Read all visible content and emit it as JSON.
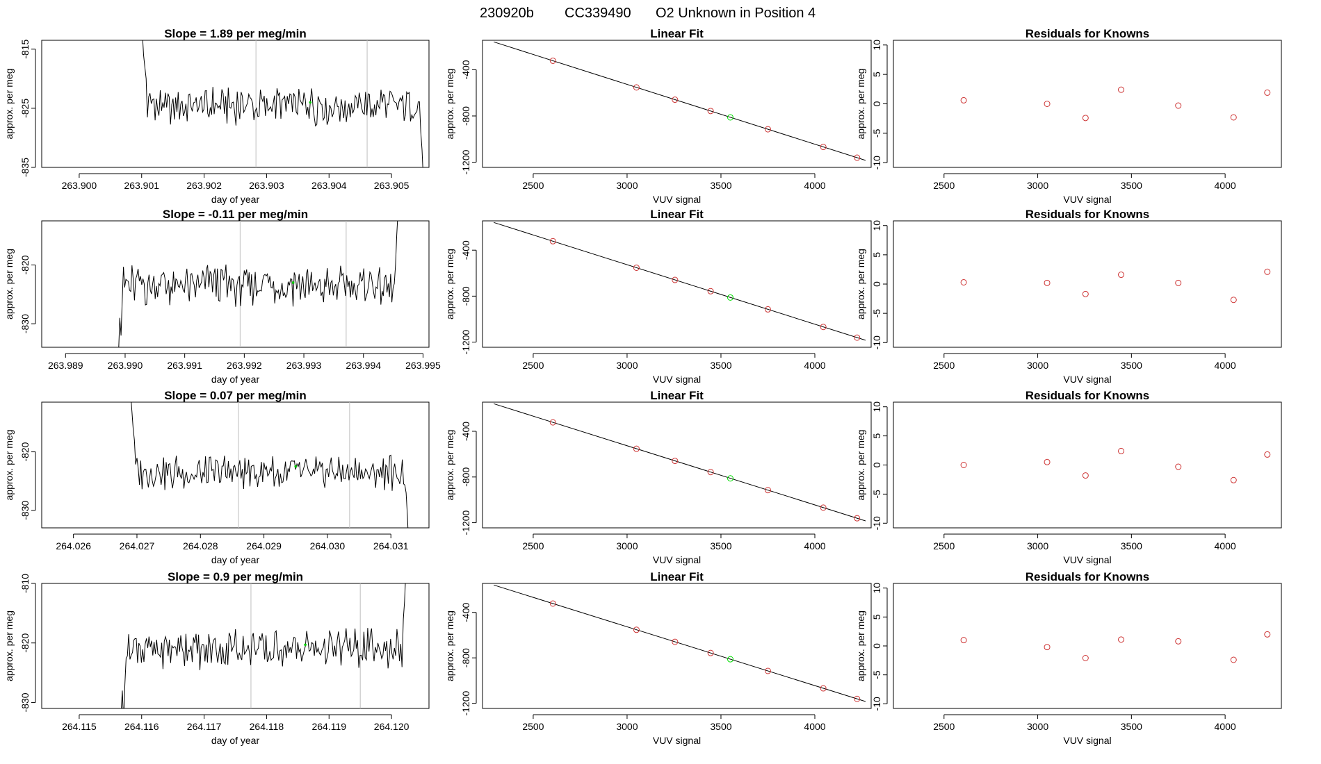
{
  "header": {
    "run": "230920b",
    "cylinder": "CC339490",
    "description": "O2 Unknown in Position  4"
  },
  "chart_data": [
    {
      "type": "line",
      "panel": "timeseries",
      "row": 1,
      "title": "Slope =  1.89  per meg/min",
      "xlabel": "day of year",
      "ylabel": "approx. per meg",
      "xlim": [
        263.8994,
        263.9056
      ],
      "ylim": [
        -835,
        -813.5
      ],
      "xticks": [
        263.9,
        263.901,
        263.902,
        263.903,
        263.904,
        263.905
      ],
      "xtick_labels": [
        "263.900",
        "263.901",
        "263.902",
        "263.903",
        "263.904",
        "263.905"
      ],
      "yticks": [
        -835,
        -825,
        -815
      ],
      "ytick_labels": [
        "-835",
        "-825",
        "-815"
      ],
      "vlines": [
        263.90283,
        263.90461
      ],
      "marker": {
        "x": 263.9037,
        "y": -824.0
      },
      "series": {
        "start": 263.90101,
        "end": 263.90553,
        "n": 220,
        "mean": -824.5,
        "amp": 3.0,
        "head": [
          -812,
          -816,
          -818,
          -820
        ],
        "tail": [
          -829,
          -832,
          -837
        ]
      }
    },
    {
      "type": "line",
      "panel": "timeseries",
      "row": 2,
      "title": "Slope =  -0.11  per meg/min",
      "xlabel": "day of year",
      "ylabel": "approx. per meg",
      "xlim": [
        263.9886,
        263.9951
      ],
      "ylim": [
        -834,
        -812.5
      ],
      "xticks": [
        263.989,
        263.99,
        263.991,
        263.992,
        263.993,
        263.994,
        263.995
      ],
      "xtick_labels": [
        "263.989",
        "263.990",
        "263.991",
        "263.992",
        "263.993",
        "263.994",
        "263.995"
      ],
      "yticks": [
        -830,
        -820
      ],
      "ytick_labels": [
        "-830",
        "-820"
      ],
      "vlines": [
        263.99193,
        263.99371
      ],
      "marker": {
        "x": 263.99282,
        "y": -823.0
      },
      "series": {
        "start": 263.98989,
        "end": 263.9946,
        "n": 230,
        "mean": -823.5,
        "amp": 3.3,
        "head": [
          -835,
          -829,
          -832,
          -826
        ],
        "tail": [
          -820,
          -815,
          -811
        ]
      }
    },
    {
      "type": "line",
      "panel": "timeseries",
      "row": 3,
      "title": "Slope =  0.07  per meg/min",
      "xlabel": "day of year",
      "ylabel": "approx. per meg",
      "xlim": [
        264.0255,
        264.0316
      ],
      "ylim": [
        -833,
        -811.5
      ],
      "xticks": [
        264.026,
        264.027,
        264.028,
        264.029,
        264.03,
        264.031
      ],
      "xtick_labels": [
        "264.026",
        "264.027",
        "264.028",
        "264.029",
        "264.030",
        "264.031"
      ],
      "yticks": [
        -830,
        -820
      ],
      "ytick_labels": [
        "-830",
        "-820"
      ],
      "vlines": [
        264.0286,
        264.03035
      ],
      "marker": {
        "x": 264.0295,
        "y": -822.5
      },
      "series": {
        "start": 264.0269,
        "end": 264.0313,
        "n": 220,
        "mean": -823.5,
        "amp": 2.9,
        "head": [
          -810,
          -813,
          -816,
          -818
        ],
        "tail": [
          -827,
          -831,
          -836
        ]
      }
    },
    {
      "type": "line",
      "panel": "timeseries",
      "row": 4,
      "title": "Slope =  0.9  per meg/min",
      "xlabel": "day of year",
      "ylabel": "approx. per meg",
      "xlim": [
        264.1144,
        264.1206
      ],
      "ylim": [
        -831,
        -810
      ],
      "xticks": [
        264.115,
        264.116,
        264.117,
        264.118,
        264.119,
        264.12
      ],
      "xtick_labels": [
        "264.115",
        "264.116",
        "264.117",
        "264.118",
        "264.119",
        "264.120"
      ],
      "yticks": [
        -830,
        -820,
        -810
      ],
      "ytick_labels": [
        "-830",
        "-820",
        "-810"
      ],
      "vlines": [
        264.11775,
        264.1195
      ],
      "marker": {
        "x": 264.11862,
        "y": -820.3
      },
      "series": {
        "start": 264.11567,
        "end": 264.12025,
        "n": 225,
        "mean": -821.0,
        "amp": 3.2,
        "head": [
          -832,
          -828,
          -833,
          -827
        ],
        "tail": [
          -816,
          -813,
          -808
        ]
      }
    },
    {
      "type": "scatter",
      "panel": "fit",
      "row": 1,
      "title": "Linear Fit",
      "xlabel": "VUV signal",
      "ylabel": "approx. per meg",
      "xlim": [
        2230,
        4300
      ],
      "ylim": [
        -1245,
        -145
      ],
      "xticks": [
        2500,
        3000,
        3500,
        4000
      ],
      "xtick_labels": [
        "2500",
        "3000",
        "3500",
        "4000"
      ],
      "yticks": [
        -1200,
        -800,
        -400
      ],
      "ytick_labels": [
        "-1200",
        "-800",
        "-400"
      ],
      "fit_line": {
        "x": [
          2290,
          4270
        ],
        "y": [
          -159,
          -1184
        ]
      },
      "knowns": {
        "x": [
          2605,
          3050,
          3255,
          3445,
          3750,
          4045,
          4225
        ],
        "y": [
          -322,
          -553,
          -659,
          -757,
          -915,
          -1068,
          -1161
        ]
      },
      "unknown": {
        "x": 3550,
        "y": -812
      }
    },
    {
      "type": "scatter",
      "panel": "fit",
      "row": 2,
      "title": "Linear Fit",
      "xlabel": "VUV signal",
      "ylabel": "approx. per meg",
      "xlim": [
        2230,
        4300
      ],
      "ylim": [
        -1245,
        -145
      ],
      "xticks": [
        2500,
        3000,
        3500,
        4000
      ],
      "xtick_labels": [
        "2500",
        "3000",
        "3500",
        "4000"
      ],
      "yticks": [
        -1200,
        -800,
        -400
      ],
      "ytick_labels": [
        "-1200",
        "-800",
        "-400"
      ],
      "fit_line": {
        "x": [
          2290,
          4270
        ],
        "y": [
          -159,
          -1184
        ]
      },
      "knowns": {
        "x": [
          2605,
          3050,
          3255,
          3445,
          3750,
          4045,
          4225
        ],
        "y": [
          -322,
          -553,
          -659,
          -757,
          -915,
          -1068,
          -1161
        ]
      },
      "unknown": {
        "x": 3550,
        "y": -812
      }
    },
    {
      "type": "scatter",
      "panel": "fit",
      "row": 3,
      "title": "Linear Fit",
      "xlabel": "VUV signal",
      "ylabel": "approx. per meg",
      "xlim": [
        2230,
        4300
      ],
      "ylim": [
        -1245,
        -145
      ],
      "xticks": [
        2500,
        3000,
        3500,
        4000
      ],
      "xtick_labels": [
        "2500",
        "3000",
        "3500",
        "4000"
      ],
      "yticks": [
        -1200,
        -800,
        -400
      ],
      "ytick_labels": [
        "-1200",
        "-800",
        "-400"
      ],
      "fit_line": {
        "x": [
          2290,
          4270
        ],
        "y": [
          -159,
          -1184
        ]
      },
      "knowns": {
        "x": [
          2605,
          3050,
          3255,
          3445,
          3750,
          4045,
          4225
        ],
        "y": [
          -322,
          -553,
          -659,
          -757,
          -915,
          -1068,
          -1161
        ]
      },
      "unknown": {
        "x": 3550,
        "y": -812
      }
    },
    {
      "type": "scatter",
      "panel": "fit",
      "row": 4,
      "title": "Linear Fit",
      "xlabel": "VUV signal",
      "ylabel": "approx. per meg",
      "xlim": [
        2230,
        4300
      ],
      "ylim": [
        -1245,
        -145
      ],
      "xticks": [
        2500,
        3000,
        3500,
        4000
      ],
      "xtick_labels": [
        "2500",
        "3000",
        "3500",
        "4000"
      ],
      "yticks": [
        -1200,
        -800,
        -400
      ],
      "ytick_labels": [
        "-1200",
        "-800",
        "-400"
      ],
      "fit_line": {
        "x": [
          2290,
          4270
        ],
        "y": [
          -159,
          -1184
        ]
      },
      "knowns": {
        "x": [
          2605,
          3050,
          3255,
          3445,
          3750,
          4045,
          4225
        ],
        "y": [
          -322,
          -553,
          -659,
          -757,
          -915,
          -1068,
          -1161
        ]
      },
      "unknown": {
        "x": 3550,
        "y": -812
      }
    },
    {
      "type": "scatter",
      "panel": "residuals",
      "row": 1,
      "title": "Residuals for Knowns",
      "xlabel": "VUV signal",
      "ylabel": "approx. per meg",
      "xlim": [
        2230,
        4300
      ],
      "ylim": [
        -10.8,
        10.8
      ],
      "xticks": [
        2500,
        3000,
        3500,
        4000
      ],
      "xtick_labels": [
        "2500",
        "3000",
        "3500",
        "4000"
      ],
      "yticks": [
        -10,
        -5,
        0,
        5,
        10
      ],
      "ytick_labels": [
        "-10",
        "-5",
        "0",
        "5",
        "10"
      ],
      "points": {
        "x": [
          2605,
          3050,
          3255,
          3445,
          3750,
          4045,
          4225
        ],
        "y": [
          0.6,
          0.0,
          -2.4,
          2.4,
          -0.3,
          -2.3,
          1.9
        ]
      }
    },
    {
      "type": "scatter",
      "panel": "residuals",
      "row": 2,
      "title": "Residuals for Knowns",
      "xlabel": "VUV signal",
      "ylabel": "approx. per meg",
      "xlim": [
        2230,
        4300
      ],
      "ylim": [
        -10.8,
        10.8
      ],
      "xticks": [
        2500,
        3000,
        3500,
        4000
      ],
      "xtick_labels": [
        "2500",
        "3000",
        "3500",
        "4000"
      ],
      "yticks": [
        -10,
        -5,
        0,
        5,
        10
      ],
      "ytick_labels": [
        "-10",
        "-5",
        "0",
        "5",
        "10"
      ],
      "points": {
        "x": [
          2605,
          3050,
          3255,
          3445,
          3750,
          4045,
          4225
        ],
        "y": [
          0.3,
          0.2,
          -1.7,
          1.6,
          0.2,
          -2.7,
          2.1
        ]
      }
    },
    {
      "type": "scatter",
      "panel": "residuals",
      "row": 3,
      "title": "Residuals for Knowns",
      "xlabel": "VUV signal",
      "ylabel": "approx. per meg",
      "xlim": [
        2230,
        4300
      ],
      "ylim": [
        -10.8,
        10.8
      ],
      "xticks": [
        2500,
        3000,
        3500,
        4000
      ],
      "xtick_labels": [
        "2500",
        "3000",
        "3500",
        "4000"
      ],
      "yticks": [
        -10,
        -5,
        0,
        5,
        10
      ],
      "ytick_labels": [
        "-10",
        "-5",
        "0",
        "5",
        "10"
      ],
      "points": {
        "x": [
          2605,
          3050,
          3255,
          3445,
          3750,
          4045,
          4225
        ],
        "y": [
          0.0,
          0.5,
          -1.8,
          2.4,
          -0.3,
          -2.6,
          1.8
        ]
      }
    },
    {
      "type": "scatter",
      "panel": "residuals",
      "row": 4,
      "title": "Residuals for Knowns",
      "xlabel": "VUV signal",
      "ylabel": "approx. per meg",
      "xlim": [
        2230,
        4300
      ],
      "ylim": [
        -10.8,
        10.8
      ],
      "xticks": [
        2500,
        3000,
        3500,
        4000
      ],
      "xtick_labels": [
        "2500",
        "3000",
        "3500",
        "4000"
      ],
      "yticks": [
        -10,
        -5,
        0,
        5,
        10
      ],
      "ytick_labels": [
        "-10",
        "-5",
        "0",
        "5",
        "10"
      ],
      "points": {
        "x": [
          2605,
          3050,
          3255,
          3445,
          3750,
          4045,
          4225
        ],
        "y": [
          1.0,
          -0.2,
          -2.1,
          1.1,
          0.8,
          -2.4,
          2.0
        ]
      }
    }
  ],
  "colors": {
    "line": "#000000",
    "vline": "#bebebe",
    "marker": "#00cc00",
    "unknown": "#00dd00",
    "known": "#cd3333"
  }
}
